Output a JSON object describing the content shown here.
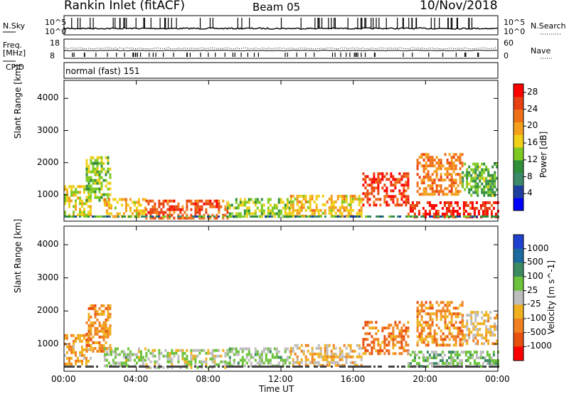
{
  "header": {
    "station": "Rankin Inlet (fitACF)",
    "beam": "Beam 05",
    "date": "10/Nov/2018"
  },
  "top_panels": {
    "nsky_label": "N.Sky",
    "nsearch_label": "N.Search",
    "freq_label": "Freq.",
    "freq_unit": "[MHz]",
    "nave_label": "Nave",
    "cpid_label": "CPID",
    "cpid_text": "normal (fast) 151",
    "left_ticks_sky": [
      "10^5",
      "10^0"
    ],
    "right_ticks_sky": [
      "10^5",
      "10^0"
    ],
    "left_ticks_freq": [
      "18",
      "8"
    ],
    "right_ticks_freq": [
      "60",
      "0"
    ]
  },
  "colors": {
    "power_scale": [
      "#0000ff",
      "#1f3fa0",
      "#3c8a6a",
      "#2f8f3a",
      "#7fca22",
      "#f0d018",
      "#f5a01c",
      "#f07018",
      "#e84010",
      "#ff0000"
    ],
    "velocity_scale": [
      "#2040d0",
      "#1a6aa0",
      "#3c8a60",
      "#6cc23a",
      "#bdbdbd",
      "#f0b020",
      "#f08020",
      "#e85010",
      "#ff0000"
    ]
  },
  "chart_data": [
    {
      "type": "heatmap",
      "title": "",
      "xlabel": "Time UT",
      "ylabel": "Slant Range [km]",
      "x_ticks": [
        "00:00",
        "04:00",
        "08:00",
        "12:00",
        "16:00",
        "20:00",
        "00:00"
      ],
      "y_ticks": [
        "1000",
        "2000",
        "3000",
        "4000"
      ],
      "xlim_hours": [
        0,
        24
      ],
      "ylim_km": [
        180,
        4560
      ],
      "colorbar": {
        "label": "Power [dB]",
        "ticks": [
          "4",
          "8",
          "12",
          "16",
          "20",
          "24",
          "28"
        ],
        "range": [
          0,
          30
        ]
      },
      "regions": [
        {
          "t": [
            0.0,
            1.5
          ],
          "r": [
            400,
            1300
          ],
          "value": 16
        },
        {
          "t": [
            1.2,
            2.5
          ],
          "r": [
            800,
            2200
          ],
          "value": 14
        },
        {
          "t": [
            2.2,
            4.5
          ],
          "r": [
            300,
            900
          ],
          "value": 18
        },
        {
          "t": [
            4.5,
            9.0
          ],
          "r": [
            250,
            850
          ],
          "value": 24
        },
        {
          "t": [
            9.0,
            12.5
          ],
          "r": [
            300,
            900
          ],
          "value": 14
        },
        {
          "t": [
            12.5,
            16.5
          ],
          "r": [
            350,
            1000
          ],
          "value": 18
        },
        {
          "t": [
            16.5,
            19.0
          ],
          "r": [
            700,
            1700
          ],
          "value": 26
        },
        {
          "t": [
            19.0,
            24.0
          ],
          "r": [
            300,
            800
          ],
          "value": 27
        },
        {
          "t": [
            19.5,
            22.0
          ],
          "r": [
            1000,
            2300
          ],
          "value": 22
        },
        {
          "t": [
            22.0,
            24.0
          ],
          "r": [
            1000,
            2000
          ],
          "value": 12
        }
      ]
    },
    {
      "type": "heatmap",
      "title": "",
      "xlabel": "Time UT",
      "ylabel": "Slant Range [km]",
      "x_ticks": [
        "00:00",
        "04:00",
        "08:00",
        "12:00",
        "16:00",
        "20:00",
        "00:00"
      ],
      "y_ticks": [
        "1000",
        "2000",
        "3000",
        "4000"
      ],
      "xlim_hours": [
        0,
        24
      ],
      "ylim_km": [
        180,
        4560
      ],
      "colorbar": {
        "label": "Velocity [m s^-1]",
        "ticks": [
          "1000",
          "500",
          "100",
          "25",
          "-25",
          "-100",
          "-500",
          "-1000"
        ],
        "range": [
          -1000,
          1000
        ]
      },
      "regions": [
        {
          "t": [
            0.0,
            1.5
          ],
          "r": [
            400,
            1300
          ],
          "value": -300
        },
        {
          "t": [
            1.2,
            2.5
          ],
          "r": [
            800,
            2200
          ],
          "value": -400
        },
        {
          "t": [
            2.2,
            4.5
          ],
          "r": [
            300,
            900
          ],
          "value": 100
        },
        {
          "t": [
            4.5,
            9.0
          ],
          "r": [
            250,
            850
          ],
          "value": 20
        },
        {
          "t": [
            9.0,
            12.5
          ],
          "r": [
            300,
            900
          ],
          "value": 150
        },
        {
          "t": [
            12.5,
            16.5
          ],
          "r": [
            350,
            1000
          ],
          "value": -200
        },
        {
          "t": [
            16.5,
            19.0
          ],
          "r": [
            700,
            1700
          ],
          "value": -500
        },
        {
          "t": [
            19.0,
            24.0
          ],
          "r": [
            300,
            800
          ],
          "value": 200
        },
        {
          "t": [
            19.5,
            22.0
          ],
          "r": [
            1000,
            2300
          ],
          "value": -400
        },
        {
          "t": [
            22.0,
            24.0
          ],
          "r": [
            1000,
            2000
          ],
          "value": -150
        }
      ]
    }
  ]
}
